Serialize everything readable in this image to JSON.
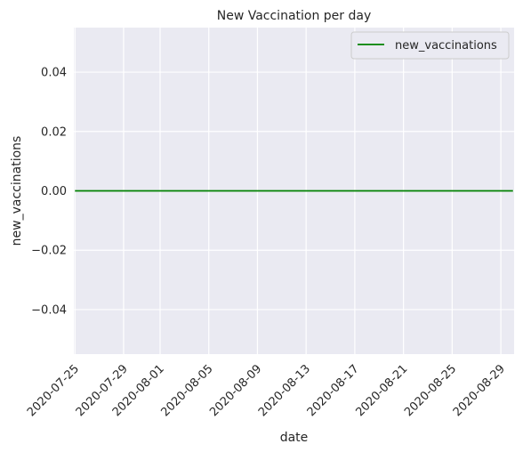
{
  "chart_data": {
    "type": "line",
    "title": "New Vaccination per day",
    "xlabel": "date",
    "ylabel": "new_vaccinations",
    "x_range": [
      "2020-07-25",
      "2020-08-30"
    ],
    "ylim": [
      -0.055,
      0.055
    ],
    "x_ticks": [
      "2020-07-25",
      "2020-07-29",
      "2020-08-01",
      "2020-08-05",
      "2020-08-09",
      "2020-08-13",
      "2020-08-17",
      "2020-08-21",
      "2020-08-25",
      "2020-08-29"
    ],
    "y_ticks": [
      {
        "value": 0.04,
        "label": "0.04"
      },
      {
        "value": 0.02,
        "label": "0.02"
      },
      {
        "value": 0.0,
        "label": "0.00"
      },
      {
        "value": -0.02,
        "label": "−0.02"
      },
      {
        "value": -0.04,
        "label": "−0.04"
      }
    ],
    "grid": true,
    "legend_position": "top-right",
    "series": [
      {
        "name": "new_vaccinations",
        "color": "#008000",
        "points": [
          {
            "x": "2020-07-25",
            "y": 0
          },
          {
            "x": "2020-08-30",
            "y": 0
          }
        ]
      }
    ],
    "colors": {
      "plot_background": "#eaeaf2",
      "grid": "#ffffff",
      "text": "#262626"
    }
  }
}
